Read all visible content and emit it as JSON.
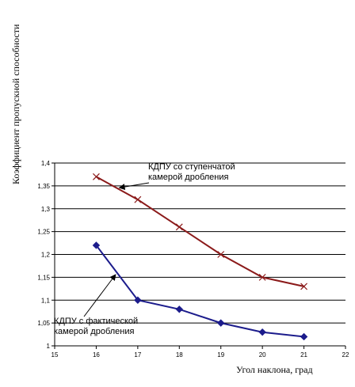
{
  "chart_data": {
    "type": "line",
    "title": "",
    "xlabel": "Угол наклона, град",
    "ylabel": "Коэффициент пропускной способности",
    "xlim": [
      15,
      22
    ],
    "ylim": [
      1,
      1.4
    ],
    "xticks": [
      "15",
      "16",
      "17",
      "18",
      "19",
      "20",
      "21",
      "22"
    ],
    "yticks": [
      "1",
      "1,05",
      "1,1",
      "1,15",
      "1,2",
      "1,25",
      "1,3",
      "1,35",
      "1,4"
    ],
    "grid": "horizontal",
    "series": [
      {
        "name": "",
        "color": "#8B1A1A",
        "marker": "x",
        "x": [
          16,
          17,
          18,
          19,
          20,
          21
        ],
        "y": [
          1.37,
          1.32,
          1.26,
          1.2,
          1.15,
          1.13
        ]
      },
      {
        "name": "",
        "color": "#1C1C8C",
        "marker": "diamond",
        "x": [
          16,
          17,
          18,
          19,
          20,
          21
        ],
        "y": [
          1.22,
          1.1,
          1.08,
          1.05,
          1.03,
          1.02
        ]
      }
    ],
    "annotations": [
      {
        "lines": [
          "КДПУ со ступенчатой",
          "камерой дробления"
        ],
        "target_series": 0
      },
      {
        "lines": [
          "КДПУ с фактической",
          "камерой дробления"
        ],
        "target_series": 1
      }
    ]
  }
}
